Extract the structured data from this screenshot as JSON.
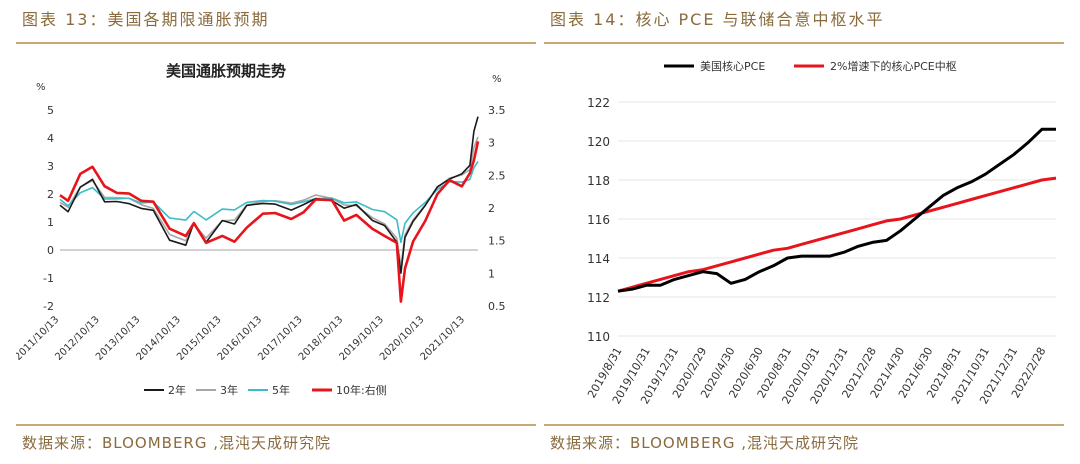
{
  "left": {
    "caption_title": "图表 13：美国各期限通胀预期",
    "source": "数据来源：BLOOMBERG ,混沌天成研究院",
    "chart_data": {
      "type": "line",
      "title": "美国通胀预期走势",
      "ylabel_left": "%",
      "ylabel_right": "%",
      "ylim_left": [
        -2,
        5
      ],
      "ylim_right": [
        0.5,
        3.5
      ],
      "yticks_left": [
        "5",
        "4",
        "3",
        "2",
        "1",
        "0",
        "-1",
        "-2"
      ],
      "yticks_right": [
        "3.5",
        "3",
        "2.5",
        "2",
        "1.5",
        "1",
        "0.5"
      ],
      "xticks": [
        "2011/10/13",
        "2012/10/13",
        "2013/10/13",
        "2014/10/13",
        "2015/10/13",
        "2016/10/13",
        "2017/10/13",
        "2018/10/13",
        "2019/10/13",
        "2020/10/13",
        "2021/10/13"
      ],
      "x": [
        2011.8,
        2012.0,
        2012.3,
        2012.6,
        2012.9,
        2013.2,
        2013.5,
        2013.8,
        2014.1,
        2014.5,
        2014.9,
        2015.1,
        2015.4,
        2015.8,
        2016.1,
        2016.4,
        2016.8,
        2017.1,
        2017.5,
        2017.8,
        2018.1,
        2018.5,
        2018.8,
        2019.1,
        2019.5,
        2019.8,
        2020.1,
        2020.2,
        2020.3,
        2020.5,
        2020.8,
        2021.1,
        2021.4,
        2021.7,
        2021.9,
        2022.0,
        2022.1
      ],
      "series": [
        {
          "name": "2年",
          "axis": "left",
          "color": "#1a1a1a",
          "values": [
            1.6,
            1.4,
            2.3,
            2.6,
            1.8,
            1.8,
            1.7,
            1.5,
            1.4,
            0.3,
            0.1,
            0.9,
            0.2,
            1.0,
            0.9,
            1.6,
            1.7,
            1.7,
            1.5,
            1.7,
            1.9,
            1.8,
            1.5,
            1.6,
            1.0,
            0.8,
            0.2,
            -0.9,
            0.4,
            1.0,
            1.6,
            2.3,
            2.6,
            2.8,
            3.1,
            4.3,
            4.8
          ]
        },
        {
          "name": "3年",
          "axis": "left",
          "color": "#a6a6a6",
          "values": [
            1.7,
            1.5,
            2.2,
            2.4,
            1.8,
            1.8,
            1.8,
            1.6,
            1.5,
            0.6,
            0.4,
            1.0,
            0.5,
            1.1,
            1.1,
            1.6,
            1.7,
            1.7,
            1.6,
            1.7,
            1.9,
            1.8,
            1.6,
            1.6,
            1.2,
            1.0,
            0.5,
            -0.5,
            0.6,
            1.1,
            1.6,
            2.2,
            2.5,
            2.6,
            2.8,
            3.6,
            4.0
          ]
        },
        {
          "name": "5年",
          "axis": "left",
          "color": "#3cbcc8",
          "values": [
            1.8,
            1.6,
            2.1,
            2.3,
            1.9,
            1.9,
            1.9,
            1.7,
            1.7,
            1.1,
            1.0,
            1.3,
            1.0,
            1.4,
            1.4,
            1.7,
            1.8,
            1.8,
            1.7,
            1.8,
            1.9,
            1.9,
            1.7,
            1.7,
            1.4,
            1.3,
            1.0,
            0.2,
            0.9,
            1.3,
            1.7,
            2.2,
            2.5,
            2.5,
            2.6,
            3.0,
            3.2
          ]
        },
        {
          "name": "10年:右侧",
          "axis": "right",
          "color": "#e8141c",
          "values": [
            2.2,
            2.1,
            2.5,
            2.6,
            2.3,
            2.2,
            2.2,
            2.1,
            2.1,
            1.7,
            1.6,
            1.8,
            1.5,
            1.6,
            1.5,
            1.7,
            1.9,
            1.9,
            1.8,
            1.9,
            2.1,
            2.1,
            1.8,
            1.9,
            1.7,
            1.6,
            1.5,
            0.6,
            1.1,
            1.5,
            1.8,
            2.2,
            2.4,
            2.3,
            2.5,
            2.7,
            3.0
          ]
        }
      ],
      "legend_position": "bottom"
    }
  },
  "right": {
    "caption_title": "图表 14：核心 PCE 与联储合意中枢水平",
    "source": "数据来源：BLOOMBERG ,混沌天成研究院",
    "chart_data": {
      "type": "line",
      "ylim": [
        110,
        122
      ],
      "yticks": [
        "122",
        "120",
        "118",
        "116",
        "114",
        "112",
        "110"
      ],
      "xticks": [
        "2019/8/31",
        "2019/10/31",
        "2019/12/31",
        "2020/2/29",
        "2020/4/30",
        "2020/6/30",
        "2020/8/31",
        "2020/10/31",
        "2020/12/31",
        "2021/2/28",
        "2021/4/30",
        "2021/6/30",
        "2021/8/31",
        "2021/10/31",
        "2021/12/31",
        "2022/2/28"
      ],
      "x": [
        "2019/8/31",
        "2019/9/30",
        "2019/10/31",
        "2019/11/30",
        "2019/12/31",
        "2020/1/31",
        "2020/2/29",
        "2020/3/31",
        "2020/4/30",
        "2020/5/31",
        "2020/6/30",
        "2020/7/31",
        "2020/8/31",
        "2020/9/30",
        "2020/10/31",
        "2020/11/30",
        "2020/12/31",
        "2021/1/31",
        "2021/2/28",
        "2021/3/31",
        "2021/4/30",
        "2021/5/31",
        "2021/6/30",
        "2021/7/31",
        "2021/8/31",
        "2021/9/30",
        "2021/10/31",
        "2021/11/30",
        "2021/12/31",
        "2022/1/31",
        "2022/2/28",
        "2022/3/31"
      ],
      "series": [
        {
          "name": "美国核心PCE",
          "color": "#000000",
          "values": [
            112.3,
            112.4,
            112.6,
            112.6,
            112.9,
            113.1,
            113.3,
            113.2,
            112.7,
            112.9,
            113.3,
            113.6,
            114.0,
            114.1,
            114.1,
            114.1,
            114.3,
            114.6,
            114.8,
            114.9,
            115.4,
            116.0,
            116.6,
            117.2,
            117.6,
            117.9,
            118.3,
            118.8,
            119.3,
            119.9,
            120.6,
            120.6
          ]
        },
        {
          "name": "2%增速下的核心PCE中枢",
          "color": "#e8141c",
          "values": [
            112.3,
            112.5,
            112.7,
            112.9,
            113.1,
            113.3,
            113.4,
            113.6,
            113.8,
            114.0,
            114.2,
            114.4,
            114.5,
            114.7,
            114.9,
            115.1,
            115.3,
            115.5,
            115.7,
            115.9,
            116.0,
            116.2,
            116.4,
            116.6,
            116.8,
            117.0,
            117.2,
            117.4,
            117.6,
            117.8,
            118.0,
            118.1
          ]
        }
      ],
      "legend_position": "top"
    }
  }
}
